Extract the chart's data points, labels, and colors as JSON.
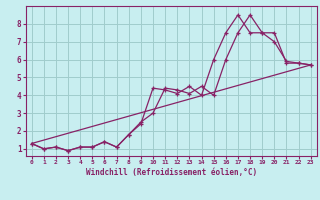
{
  "background_color": "#c8eef0",
  "grid_color": "#a0cccc",
  "line_color": "#882266",
  "xlim": [
    -0.5,
    23.5
  ],
  "ylim": [
    0.6,
    9.0
  ],
  "xticks": [
    0,
    1,
    2,
    3,
    4,
    5,
    6,
    7,
    8,
    9,
    10,
    11,
    12,
    13,
    14,
    15,
    16,
    17,
    18,
    19,
    20,
    21,
    22,
    23
  ],
  "yticks": [
    1,
    2,
    3,
    4,
    5,
    6,
    7,
    8
  ],
  "xlabel": "Windchill (Refroidissement éolien,°C)",
  "line1_x": [
    0,
    1,
    2,
    3,
    4,
    5,
    6,
    7,
    8,
    9,
    10,
    11,
    12,
    13,
    14,
    15,
    16,
    17,
    18,
    19,
    20,
    21,
    22,
    23
  ],
  "line1_y": [
    1.3,
    1.0,
    1.1,
    0.9,
    1.1,
    1.1,
    1.4,
    1.1,
    1.8,
    2.5,
    3.0,
    4.4,
    4.3,
    4.1,
    4.5,
    4.0,
    6.0,
    7.5,
    8.5,
    7.5,
    7.0,
    5.9,
    5.8,
    5.7
  ],
  "line2_x": [
    0,
    1,
    2,
    3,
    4,
    5,
    6,
    7,
    8,
    9,
    10,
    11,
    12,
    13,
    14,
    15,
    16,
    17,
    18,
    19,
    20,
    21,
    22,
    23
  ],
  "line2_y": [
    1.3,
    1.0,
    1.1,
    0.9,
    1.1,
    1.1,
    1.4,
    1.1,
    1.8,
    2.4,
    4.4,
    4.3,
    4.1,
    4.5,
    4.0,
    6.0,
    7.5,
    8.5,
    7.5,
    7.5,
    7.5,
    5.8,
    5.8,
    5.7
  ],
  "line3_x": [
    0,
    23
  ],
  "line3_y": [
    1.3,
    5.7
  ]
}
